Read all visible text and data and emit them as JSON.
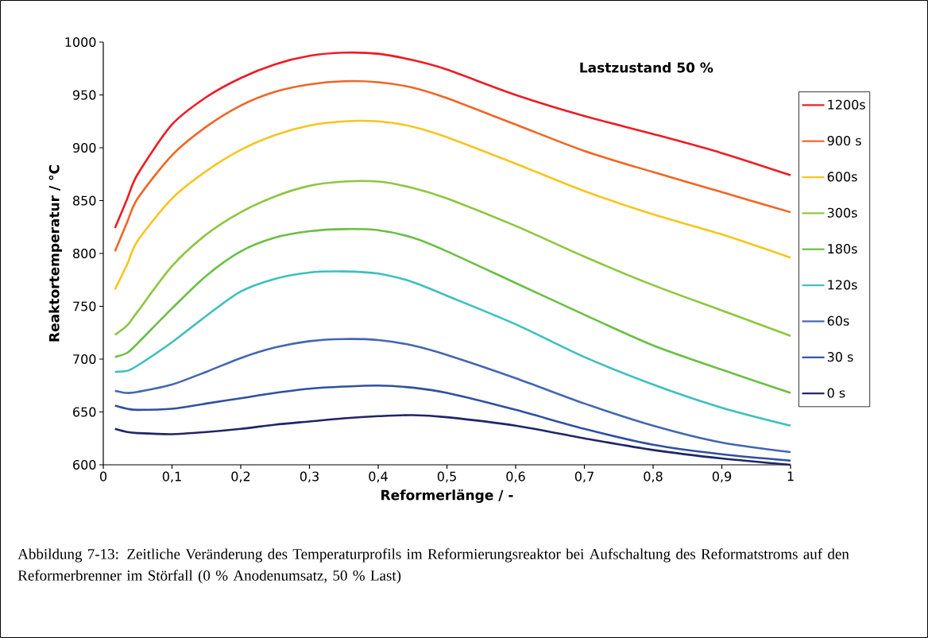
{
  "chart_data": {
    "type": "line",
    "xlabel": "Reformerlänge / -",
    "ylabel": "Reaktortemperatur / °C",
    "annotations": [
      "Lastzustand 50 %",
      "Abbildung 7-13: Zeitliche Veränderung des Temperaturprofils im Reformierungsreaktor bei Aufschaltung des Reformatstroms auf den Reformerbrenner im Störfall (0 % Anodenumsatz, 50 % Last)"
    ],
    "x": [
      0.017,
      0.035,
      0.05,
      0.1,
      0.15,
      0.2,
      0.25,
      0.3,
      0.35,
      0.4,
      0.45,
      0.5,
      0.6,
      0.7,
      0.8,
      0.9,
      1.0
    ],
    "series": [
      {
        "name": "1200s",
        "color": "#ed1c24",
        "values": [
          824,
          852,
          875,
          922,
          948,
          966,
          979,
          987,
          990,
          989,
          983,
          974,
          950,
          930,
          913,
          895,
          874
        ]
      },
      {
        "name": "900 s",
        "color": "#f26522",
        "values": [
          802,
          830,
          852,
          893,
          920,
          940,
          953,
          960,
          963,
          962,
          957,
          947,
          922,
          897,
          877,
          858,
          839
        ]
      },
      {
        "name": "600s",
        "color": "#f7c51e",
        "values": [
          766,
          790,
          812,
          852,
          878,
          898,
          912,
          921,
          925,
          925,
          920,
          910,
          885,
          859,
          837,
          818,
          796
        ]
      },
      {
        "name": "300s",
        "color": "#8dc63f",
        "values": [
          723,
          732,
          745,
          788,
          818,
          839,
          854,
          864,
          868,
          868,
          862,
          852,
          826,
          797,
          770,
          746,
          722
        ]
      },
      {
        "name": "180s",
        "color": "#6abf45",
        "values": [
          702,
          706,
          715,
          748,
          779,
          802,
          815,
          821,
          823,
          822,
          815,
          802,
          772,
          742,
          713,
          690,
          668
        ]
      },
      {
        "name": "120s",
        "color": "#3cbfbf",
        "values": [
          688,
          689,
          694,
          716,
          741,
          764,
          776,
          782,
          783,
          781,
          773,
          760,
          733,
          702,
          676,
          654,
          637
        ]
      },
      {
        "name": "60s",
        "color": "#4466b0",
        "values": [
          670,
          668,
          669,
          676,
          688,
          701,
          711,
          717,
          719,
          718,
          713,
          704,
          682,
          658,
          637,
          621,
          612
        ]
      },
      {
        "name": "30 s",
        "color": "#3050a0",
        "values": [
          656,
          653,
          652,
          653,
          658,
          663,
          668,
          672,
          674,
          675,
          673,
          668,
          652,
          634,
          619,
          610,
          604
        ]
      },
      {
        "name": "0 s",
        "color": "#1f2566",
        "values": [
          634,
          631,
          630,
          629,
          631,
          634,
          638,
          641,
          644,
          646,
          647,
          645,
          637,
          625,
          614,
          606,
          600
        ]
      }
    ],
    "xlim": [
      0,
      1
    ],
    "ylim": [
      600,
      1000
    ],
    "xticks": [
      0,
      {
        "value": 0.1,
        "label": "0,1"
      },
      {
        "value": 0.2,
        "label": "0,2"
      },
      {
        "value": 0.3,
        "label": "0,3"
      },
      {
        "value": 0.4,
        "label": "0,4"
      },
      {
        "value": 0.5,
        "label": "0,5"
      },
      {
        "value": 0.6,
        "label": "0,6"
      },
      {
        "value": 0.7,
        "label": "0,7"
      },
      {
        "value": 0.8,
        "label": "0,8"
      },
      {
        "value": 0.9,
        "label": "0,9"
      },
      1
    ],
    "yticks": [
      600,
      650,
      700,
      750,
      800,
      850,
      900,
      950,
      1000
    ],
    "legend": "right",
    "marker": "none",
    "line_style": "solid",
    "grid": false
  }
}
